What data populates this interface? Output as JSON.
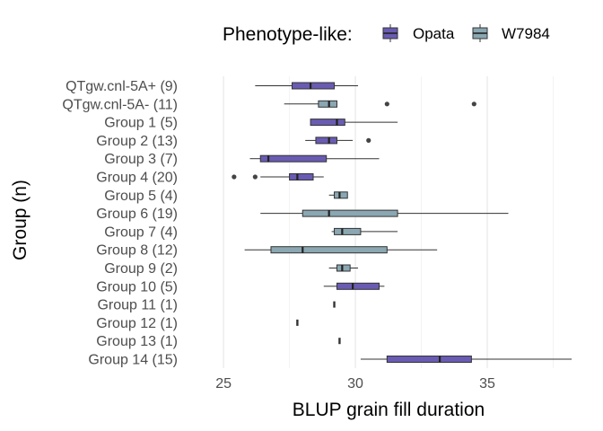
{
  "chart_data": {
    "type": "boxplot",
    "title": "",
    "xlabel": "BLUP grain fill duration",
    "ylabel": "Group (n)",
    "xlim": [
      23.5,
      38.3
    ],
    "x_ticks": [
      25,
      30,
      35
    ],
    "x_tick_labels": [
      "25",
      "30",
      "35"
    ],
    "grid": true,
    "legend": {
      "title": "Phenotype-like:",
      "position": "top",
      "entries": [
        {
          "name": "Opata",
          "color": "#6a5bb2"
        },
        {
          "name": "W7984",
          "color": "#8aa7b2"
        }
      ]
    },
    "categories": [
      "QTgw.cnl-5A+ (9)",
      "QTgw.cnl-5A- (11)",
      "Group 1 (5)",
      "Group 2 (13)",
      "Group 3 (7)",
      "Group 4 (20)",
      "Group 5 (4)",
      "Group 6 (19)",
      "Group 7 (4)",
      "Group 8 (12)",
      "Group 9 (2)",
      "Group 10 (5)",
      "Group 11 (1)",
      "Group 12 (1)",
      "Group 13 (1)",
      "Group 14 (15)"
    ],
    "boxes": [
      {
        "group": "Opata",
        "min": 26.2,
        "q1": 27.6,
        "median": 28.3,
        "q3": 29.2,
        "max": 30.1,
        "outliers": []
      },
      {
        "group": "W7984",
        "min": 27.3,
        "q1": 28.6,
        "median": 29.0,
        "q3": 29.3,
        "max": 29.3,
        "outliers": [
          31.2,
          34.5
        ]
      },
      {
        "group": "Opata",
        "min": 28.3,
        "q1": 28.3,
        "median": 29.3,
        "q3": 29.6,
        "max": 31.6,
        "outliers": []
      },
      {
        "group": "Opata",
        "min": 28.1,
        "q1": 28.5,
        "median": 29.0,
        "q3": 29.3,
        "max": 29.9,
        "outliers": [
          30.5
        ]
      },
      {
        "group": "Opata",
        "min": 26.0,
        "q1": 26.4,
        "median": 26.7,
        "q3": 28.9,
        "max": 30.9,
        "outliers": []
      },
      {
        "group": "Opata",
        "min": 26.4,
        "q1": 27.5,
        "median": 27.8,
        "q3": 28.4,
        "max": 28.8,
        "outliers": [
          25.4,
          26.2
        ]
      },
      {
        "group": "W7984",
        "min": 29.0,
        "q1": 29.2,
        "median": 29.4,
        "q3": 29.7,
        "max": 29.7,
        "outliers": []
      },
      {
        "group": "W7984",
        "min": 26.4,
        "q1": 28.0,
        "median": 29.0,
        "q3": 31.6,
        "max": 35.8,
        "outliers": []
      },
      {
        "group": "W7984",
        "min": 29.1,
        "q1": 29.2,
        "median": 29.5,
        "q3": 30.2,
        "max": 31.6,
        "outliers": []
      },
      {
        "group": "W7984",
        "min": 25.8,
        "q1": 26.8,
        "median": 28.0,
        "q3": 31.2,
        "max": 33.1,
        "outliers": []
      },
      {
        "group": "W7984",
        "min": 29.0,
        "q1": 29.3,
        "median": 29.5,
        "q3": 29.8,
        "max": 30.1,
        "outliers": []
      },
      {
        "group": "Opata",
        "min": 28.8,
        "q1": 29.3,
        "median": 29.9,
        "q3": 30.9,
        "max": 31.1,
        "outliers": []
      },
      {
        "group": "Opata",
        "min": 29.2,
        "q1": 29.2,
        "median": 29.2,
        "q3": 29.2,
        "max": 29.2,
        "outliers": []
      },
      {
        "group": "Opata",
        "min": 27.8,
        "q1": 27.8,
        "median": 27.8,
        "q3": 27.8,
        "max": 27.8,
        "outliers": []
      },
      {
        "group": "Opata",
        "min": 29.4,
        "q1": 29.4,
        "median": 29.4,
        "q3": 29.4,
        "max": 29.4,
        "outliers": []
      },
      {
        "group": "Opata",
        "min": 30.2,
        "q1": 31.2,
        "median": 33.2,
        "q3": 34.4,
        "max": 38.2,
        "outliers": []
      }
    ]
  }
}
